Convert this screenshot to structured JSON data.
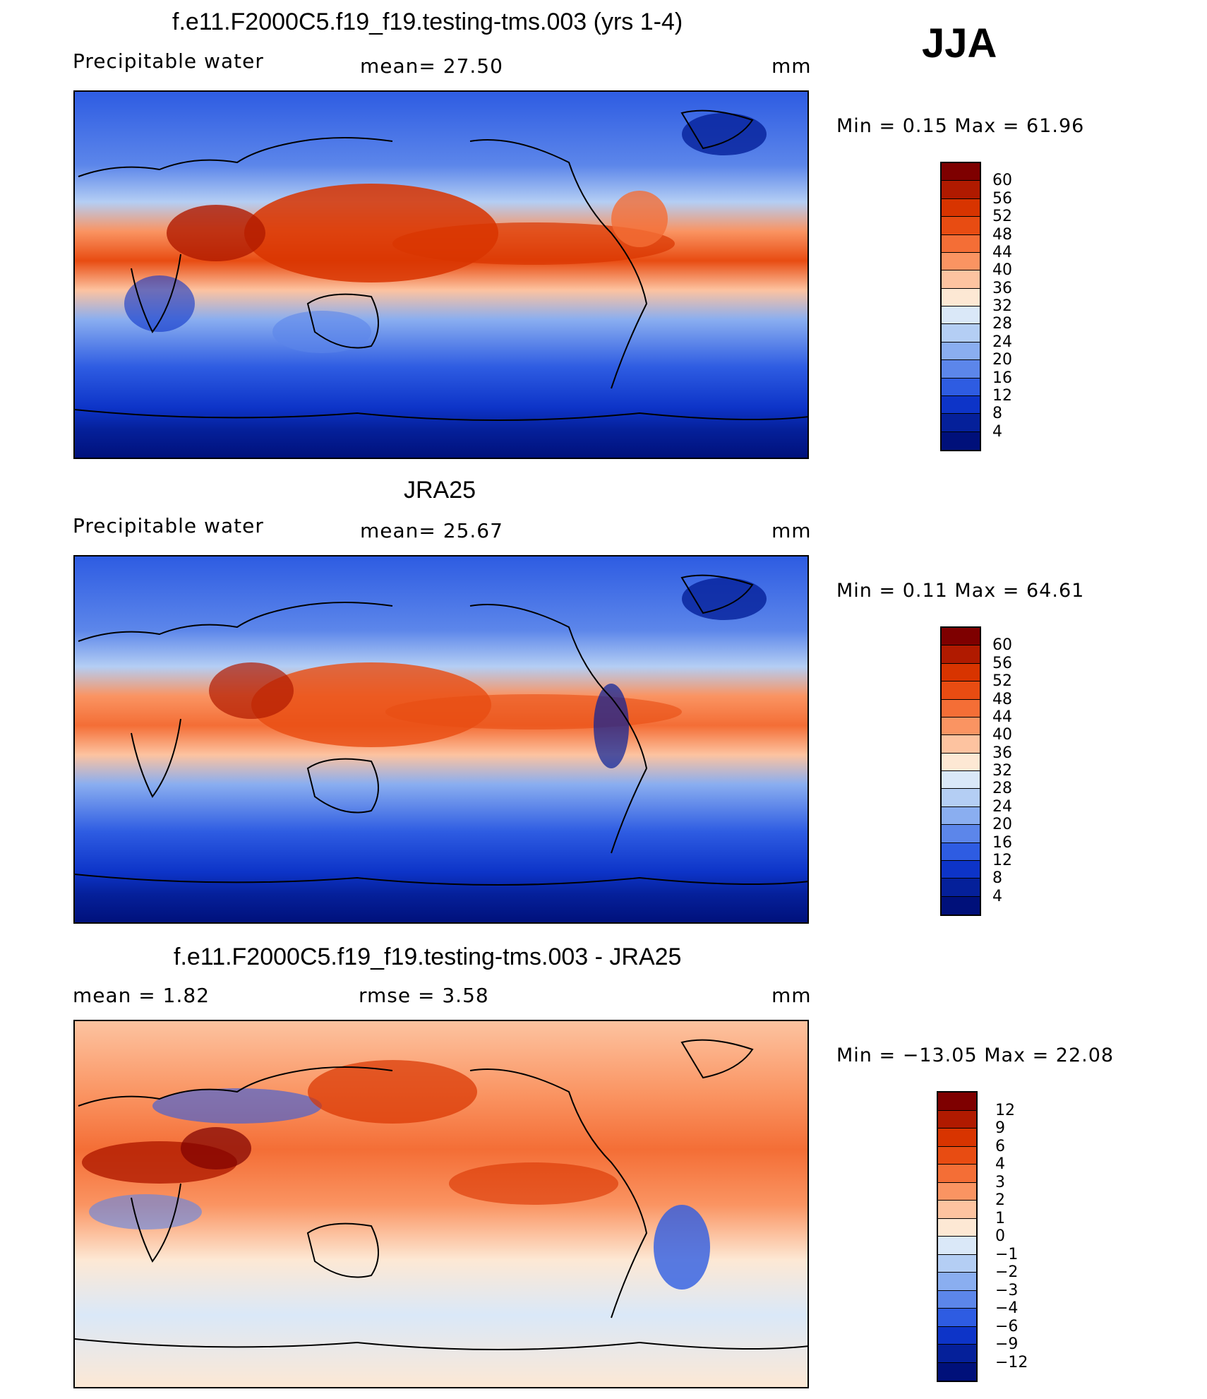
{
  "season": "JJA",
  "panels": [
    {
      "title": "f.e11.F2000C5.f19_f19.testing-tms.003 (yrs 1-4)",
      "left_label": "Precipitable  water",
      "mid_label": "mean=   27.50",
      "units": "mm",
      "minmax": "Min  =     0.15  Max  =    61.96",
      "colorbar": {
        "labels": [
          "60",
          "56",
          "52",
          "48",
          "44",
          "40",
          "36",
          "32",
          "28",
          "24",
          "20",
          "16",
          "12",
          "8",
          "4"
        ],
        "colors": [
          "#7e0000",
          "#b01a00",
          "#d83400",
          "#e84c12",
          "#f46e36",
          "#fa9462",
          "#fdc3a0",
          "#fde8d4",
          "#dae8f8",
          "#b4cef4",
          "#8aaef0",
          "#5c86ea",
          "#2e5ce2",
          "#0d34c8",
          "#05209a",
          "#00107a"
        ]
      }
    },
    {
      "title": "JRA25",
      "left_label": "Precipitable  water",
      "mid_label": "mean=   25.67",
      "units": "mm",
      "minmax": "Min  =     0.11  Max  =    64.61",
      "colorbar": {
        "labels": [
          "60",
          "56",
          "52",
          "48",
          "44",
          "40",
          "36",
          "32",
          "28",
          "24",
          "20",
          "16",
          "12",
          "8",
          "4"
        ],
        "colors": [
          "#7e0000",
          "#b01a00",
          "#d83400",
          "#e84c12",
          "#f46e36",
          "#fa9462",
          "#fdc3a0",
          "#fde8d4",
          "#dae8f8",
          "#b4cef4",
          "#8aaef0",
          "#5c86ea",
          "#2e5ce2",
          "#0d34c8",
          "#05209a",
          "#00107a"
        ]
      }
    },
    {
      "title": "f.e11.F2000C5.f19_f19.testing-tms.003 - JRA25",
      "left_label": "mean  =     1.82",
      "mid_label": "rmse  =     3.58",
      "units": "mm",
      "minmax": "Min  = −13.05  Max  =    22.08",
      "colorbar": {
        "labels": [
          "12",
          "9",
          "6",
          "4",
          "3",
          "2",
          "1",
          "0",
          "−1",
          "−2",
          "−3",
          "−4",
          "−6",
          "−9",
          "−12"
        ],
        "colors": [
          "#7e0000",
          "#b01a00",
          "#d83400",
          "#e84c12",
          "#f46e36",
          "#fa9462",
          "#fdc3a0",
          "#fde8d4",
          "#dae8f8",
          "#b4cef4",
          "#8aaef0",
          "#5c86ea",
          "#2e5ce2",
          "#0d34c8",
          "#05209a",
          "#00107a"
        ]
      }
    }
  ]
}
